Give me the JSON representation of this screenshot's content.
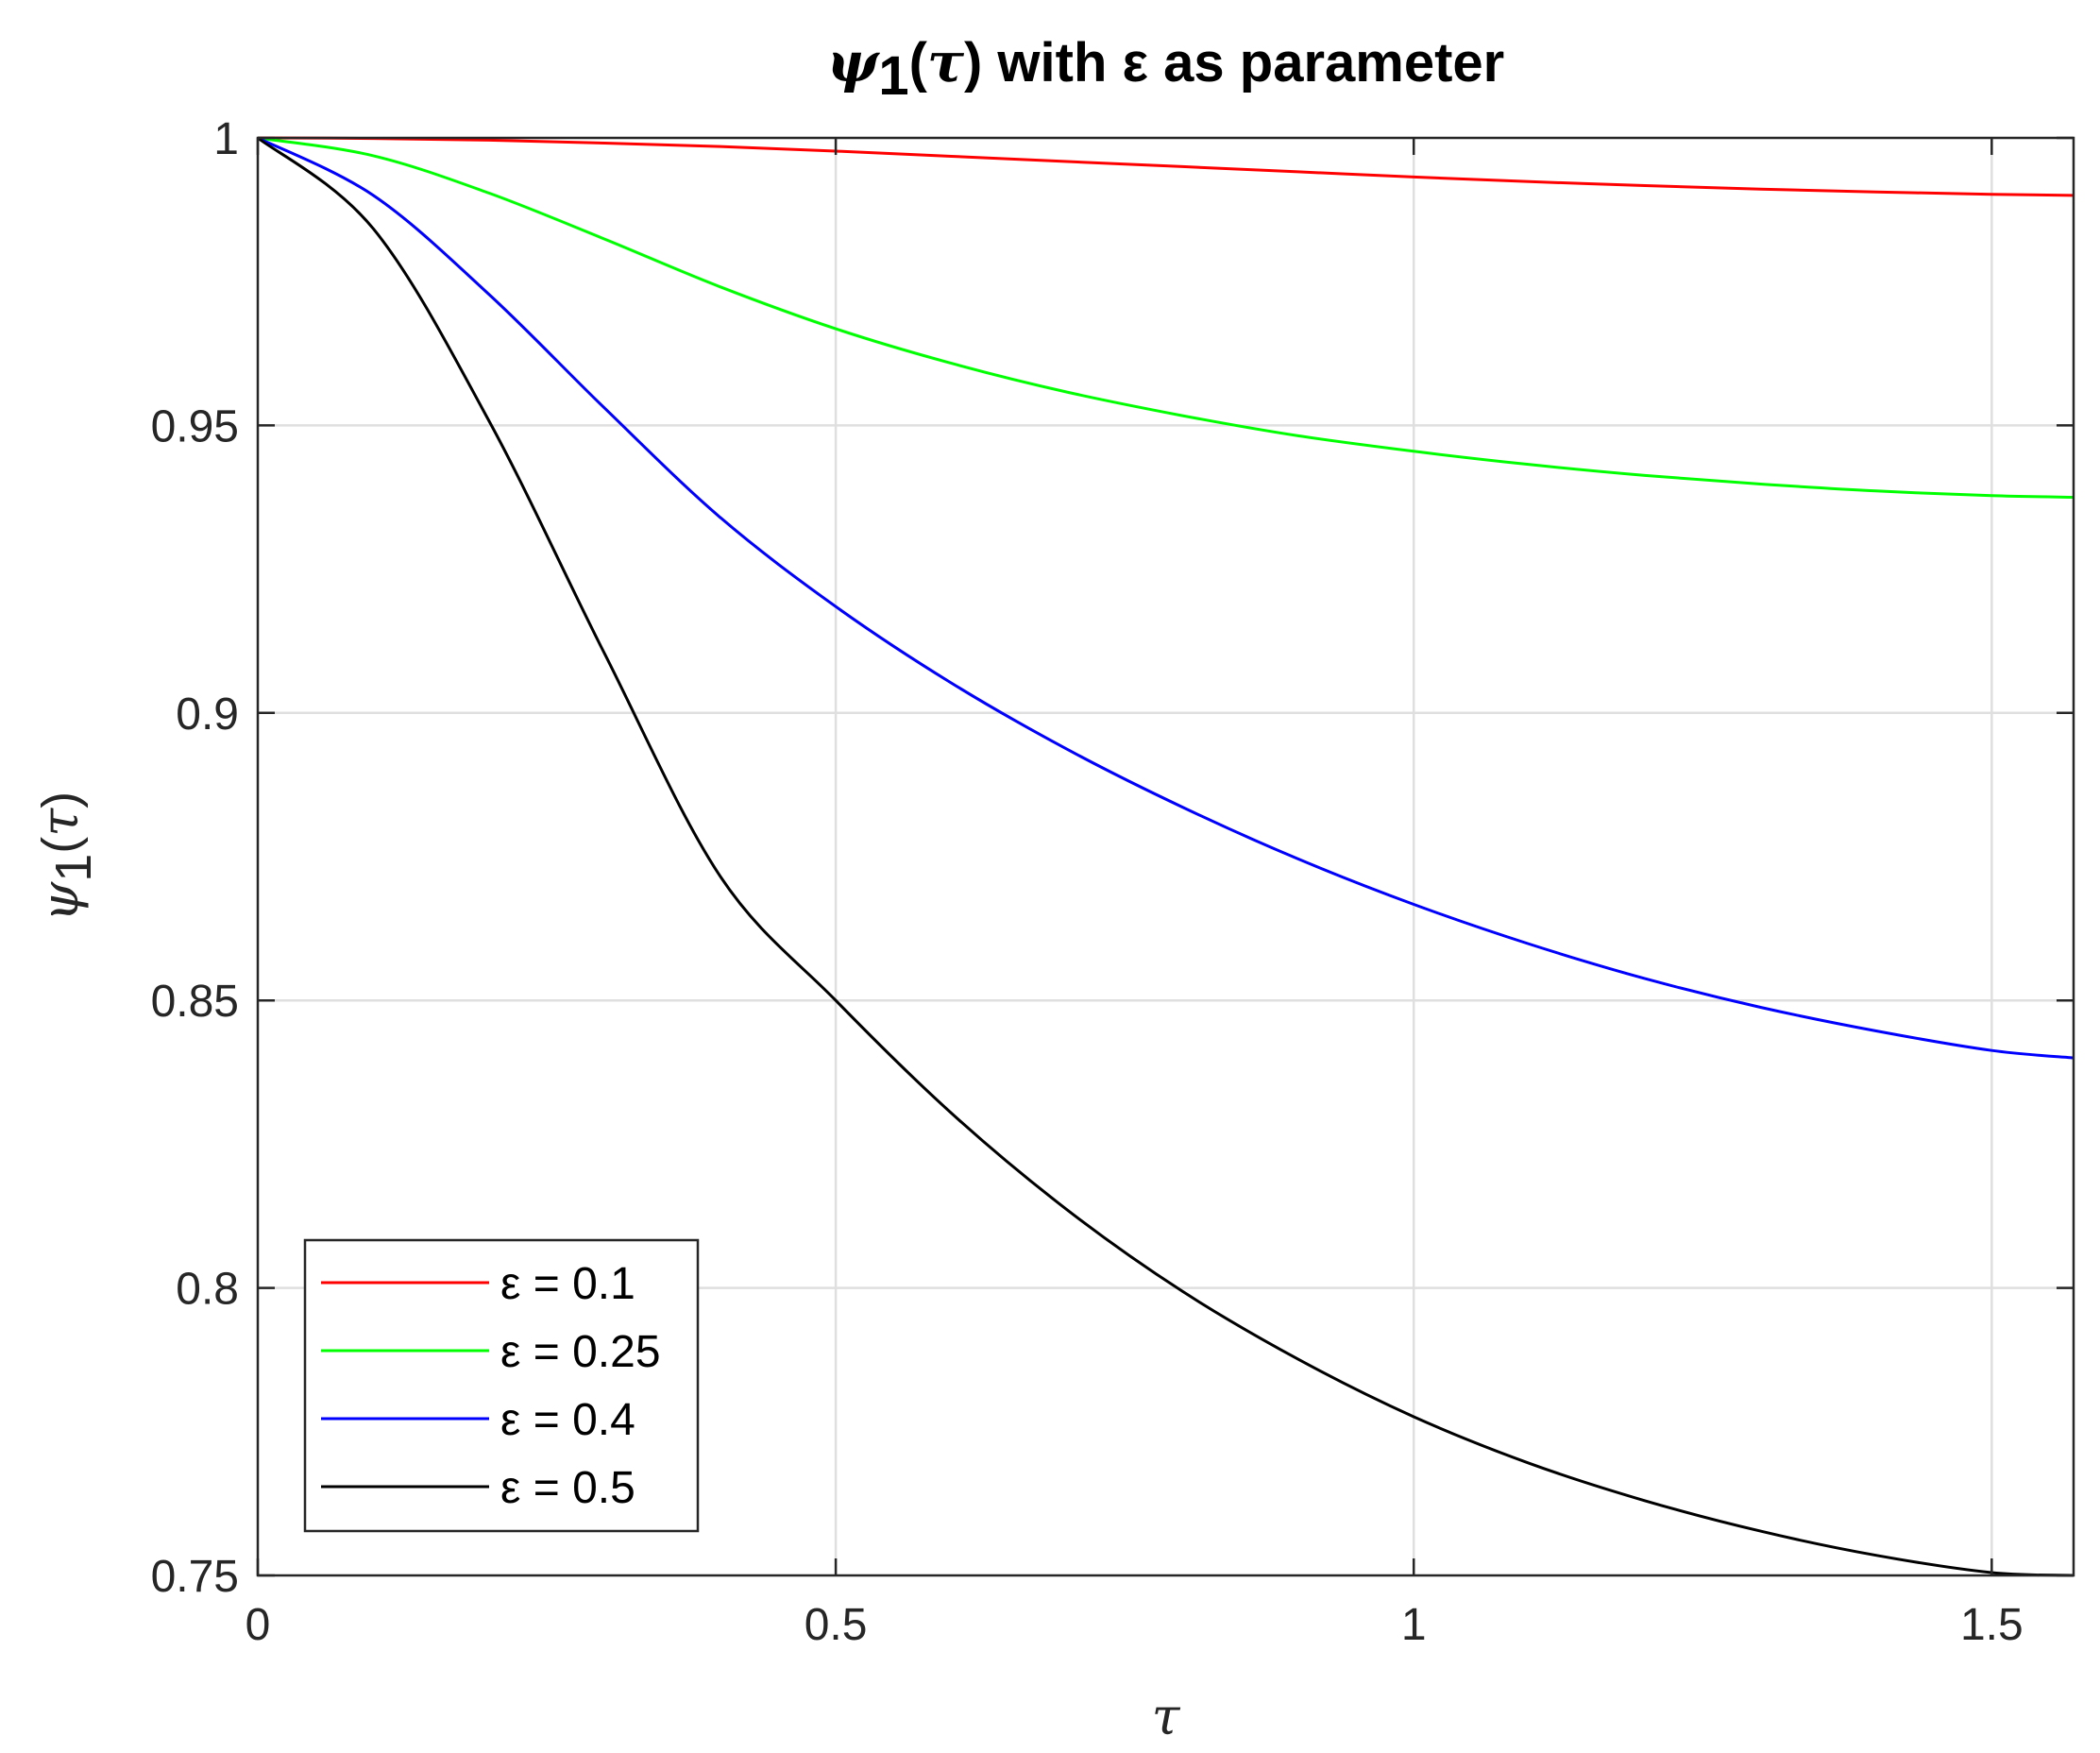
{
  "chart_data": {
    "type": "line",
    "title": {
      "psi": "ψ",
      "sub": "1",
      "open": "(",
      "tau": "τ",
      "close": ")",
      "rest": " with ε as parameter"
    },
    "xlabel": "τ",
    "ylabel": {
      "psi": "ψ",
      "sub": "1",
      "open": "(",
      "tau": "τ",
      "close": ")"
    },
    "xlim": [
      0,
      1.5708
    ],
    "ylim": [
      0.75,
      1
    ],
    "xticks": [
      0,
      0.5,
      1,
      1.5
    ],
    "xtick_labels": [
      "0",
      "0.5",
      "1",
      "1.5"
    ],
    "yticks": [
      0.75,
      0.8,
      0.85,
      0.9,
      0.95,
      1
    ],
    "ytick_labels": [
      "0.75",
      "0.8",
      "0.85",
      "0.9",
      "0.95",
      "1"
    ],
    "grid": true,
    "legend_position": "bottom-left",
    "x": [
      0,
      0.1,
      0.2,
      0.3,
      0.4,
      0.5,
      0.6,
      0.7,
      0.8,
      0.9,
      1.0,
      1.1,
      1.2,
      1.3,
      1.4,
      1.5,
      1.5708
    ],
    "series": [
      {
        "name": "ε = 0.1",
        "color": "#ff0000",
        "values": [
          1.0,
          0.9999,
          0.9996,
          0.9991,
          0.9985,
          0.9977,
          0.9968,
          0.9959,
          0.995,
          0.9941,
          0.9932,
          0.9924,
          0.9917,
          0.9911,
          0.9906,
          0.9902,
          0.99
        ]
      },
      {
        "name": "ε = 0.25",
        "color": "#00ff00",
        "values": [
          1.0,
          0.9969,
          0.9904,
          0.9824,
          0.9741,
          0.9668,
          0.9608,
          0.9558,
          0.9517,
          0.9482,
          0.9455,
          0.9432,
          0.9413,
          0.9398,
          0.9386,
          0.9378,
          0.9375
        ]
      },
      {
        "name": "ε = 0.4",
        "color": "#0000ff",
        "values": [
          1.0,
          0.99,
          0.9728,
          0.953,
          0.934,
          0.9185,
          0.9052,
          0.8937,
          0.8836,
          0.8746,
          0.8667,
          0.8598,
          0.8538,
          0.8488,
          0.8447,
          0.8413,
          0.84
        ]
      },
      {
        "name": "ε = 0.5",
        "color": "#000000",
        "values": [
          1.0,
          0.9842,
          0.9508,
          0.9103,
          0.8716,
          0.85,
          0.8304,
          0.8136,
          0.7994,
          0.7876,
          0.7776,
          0.7695,
          0.763,
          0.7577,
          0.7535,
          0.7505,
          0.75
        ]
      }
    ]
  }
}
